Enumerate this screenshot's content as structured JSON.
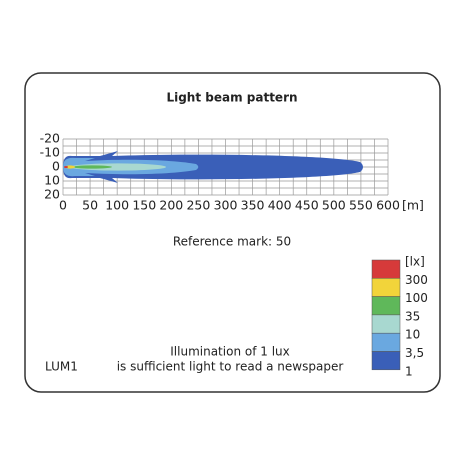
{
  "title": "Light beam pattern",
  "axes": {
    "x_ticks": [
      0,
      50,
      100,
      150,
      200,
      250,
      300,
      350,
      400,
      450,
      500,
      550,
      600
    ],
    "x_unit": "[m]",
    "y_ticks": [
      -20,
      -10,
      0,
      10,
      20
    ]
  },
  "reference_mark": "Reference mark: 50",
  "legend": {
    "unit": "[lx]",
    "labels": [
      "300",
      "100",
      "35",
      "10",
      "3,5",
      "1"
    ],
    "colors": [
      "#d63a3a",
      "#f2d43a",
      "#5fb85a",
      "#a8d8d0",
      "#6aa8e0",
      "#3a5fb8"
    ]
  },
  "footer": {
    "id": "LUM1",
    "caption": [
      "Illumination of 1 lux",
      "is sufficient light to read a newspaper"
    ]
  }
}
